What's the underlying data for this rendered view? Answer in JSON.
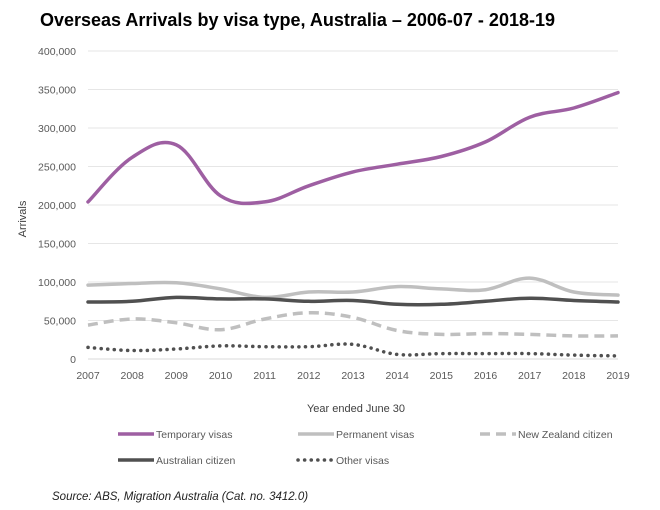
{
  "chart_data": {
    "type": "line",
    "title": "Overseas Arrivals by visa type, Australia – 2006-07 - 2018-19",
    "xlabel": "Year ended June 30",
    "ylabel": "Arrivals",
    "x": [
      "2007",
      "2008",
      "2009",
      "2010",
      "2011",
      "2012",
      "2013",
      "2014",
      "2015",
      "2016",
      "2017",
      "2018",
      "2019"
    ],
    "ylim": [
      0,
      400000
    ],
    "yticks": [
      0,
      50000,
      100000,
      150000,
      200000,
      250000,
      300000,
      350000,
      400000
    ],
    "ytick_labels": [
      "0",
      "50,000",
      "100,000",
      "150,000",
      "200,000",
      "250,000",
      "300,000",
      "350,000",
      "400,000"
    ],
    "grid": true,
    "legend_position": "bottom",
    "series": [
      {
        "name": "Temporary visas",
        "color": "#9e5fa2",
        "style": "solid",
        "width": 3.5,
        "values": [
          204000,
          262000,
          278000,
          212000,
          204000,
          225000,
          243000,
          253000,
          263000,
          282000,
          314000,
          326000,
          346000
        ]
      },
      {
        "name": "Permanent visas",
        "color": "#bfbfbf",
        "style": "solid",
        "width": 3.5,
        "values": [
          96000,
          98000,
          99000,
          91000,
          80000,
          87000,
          87000,
          94000,
          91000,
          90000,
          105000,
          87000,
          83000
        ]
      },
      {
        "name": "New Zealand citizen",
        "color": "#bfbfbf",
        "style": "dashed",
        "width": 3.5,
        "values": [
          44000,
          52000,
          47000,
          38000,
          52000,
          60000,
          54000,
          37000,
          32000,
          33000,
          32000,
          30000,
          30000
        ]
      },
      {
        "name": "Australian citizen",
        "color": "#505050",
        "style": "solid",
        "width": 3.5,
        "values": [
          74000,
          75000,
          80000,
          78000,
          78000,
          75000,
          76000,
          71000,
          71000,
          75000,
          79000,
          76000,
          74000
        ]
      },
      {
        "name": "Other visas",
        "color": "#505050",
        "style": "dotted",
        "width": 3.5,
        "values": [
          15000,
          11000,
          13000,
          17000,
          16000,
          16000,
          19000,
          6000,
          7000,
          7000,
          7000,
          5000,
          4000
        ]
      }
    ],
    "source": "Source:  ABS, Migration Australia (Cat. no. 3412.0)"
  }
}
